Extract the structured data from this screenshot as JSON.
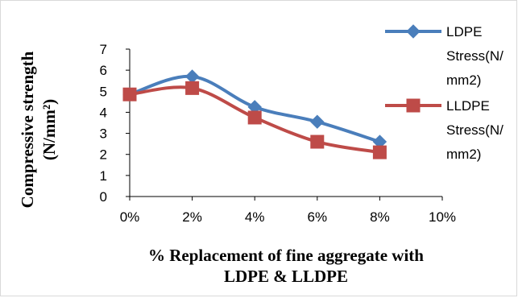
{
  "chart_data": {
    "type": "line",
    "x": [
      "0%",
      "2%",
      "4%",
      "6%",
      "8%"
    ],
    "x_ticks": [
      "0%",
      "2%",
      "4%",
      "6%",
      "8%",
      "10%"
    ],
    "y_ticks": [
      "0",
      "1",
      "2",
      "3",
      "4",
      "5",
      "6",
      "7"
    ],
    "ylim": [
      0,
      7
    ],
    "series": [
      {
        "name_lines": [
          "LDPE",
          "Stress(N/",
          "mm2)"
        ],
        "values": [
          4.85,
          5.7,
          4.25,
          3.55,
          2.6
        ],
        "color": "#4a7ebb",
        "marker": "diamond"
      },
      {
        "name_lines": [
          "LLDPE",
          "Stress(N/",
          "mm2)"
        ],
        "values": [
          4.85,
          5.15,
          3.75,
          2.6,
          2.1
        ],
        "color": "#be4b48",
        "marker": "square"
      }
    ],
    "xlabel_lines": [
      "% Replacement of fine aggregate with",
      "LDPE & LLDPE"
    ],
    "ylabel_lines": [
      "Compressive strength",
      "(N/mm²)"
    ],
    "grid": false,
    "legend_position": "right"
  }
}
